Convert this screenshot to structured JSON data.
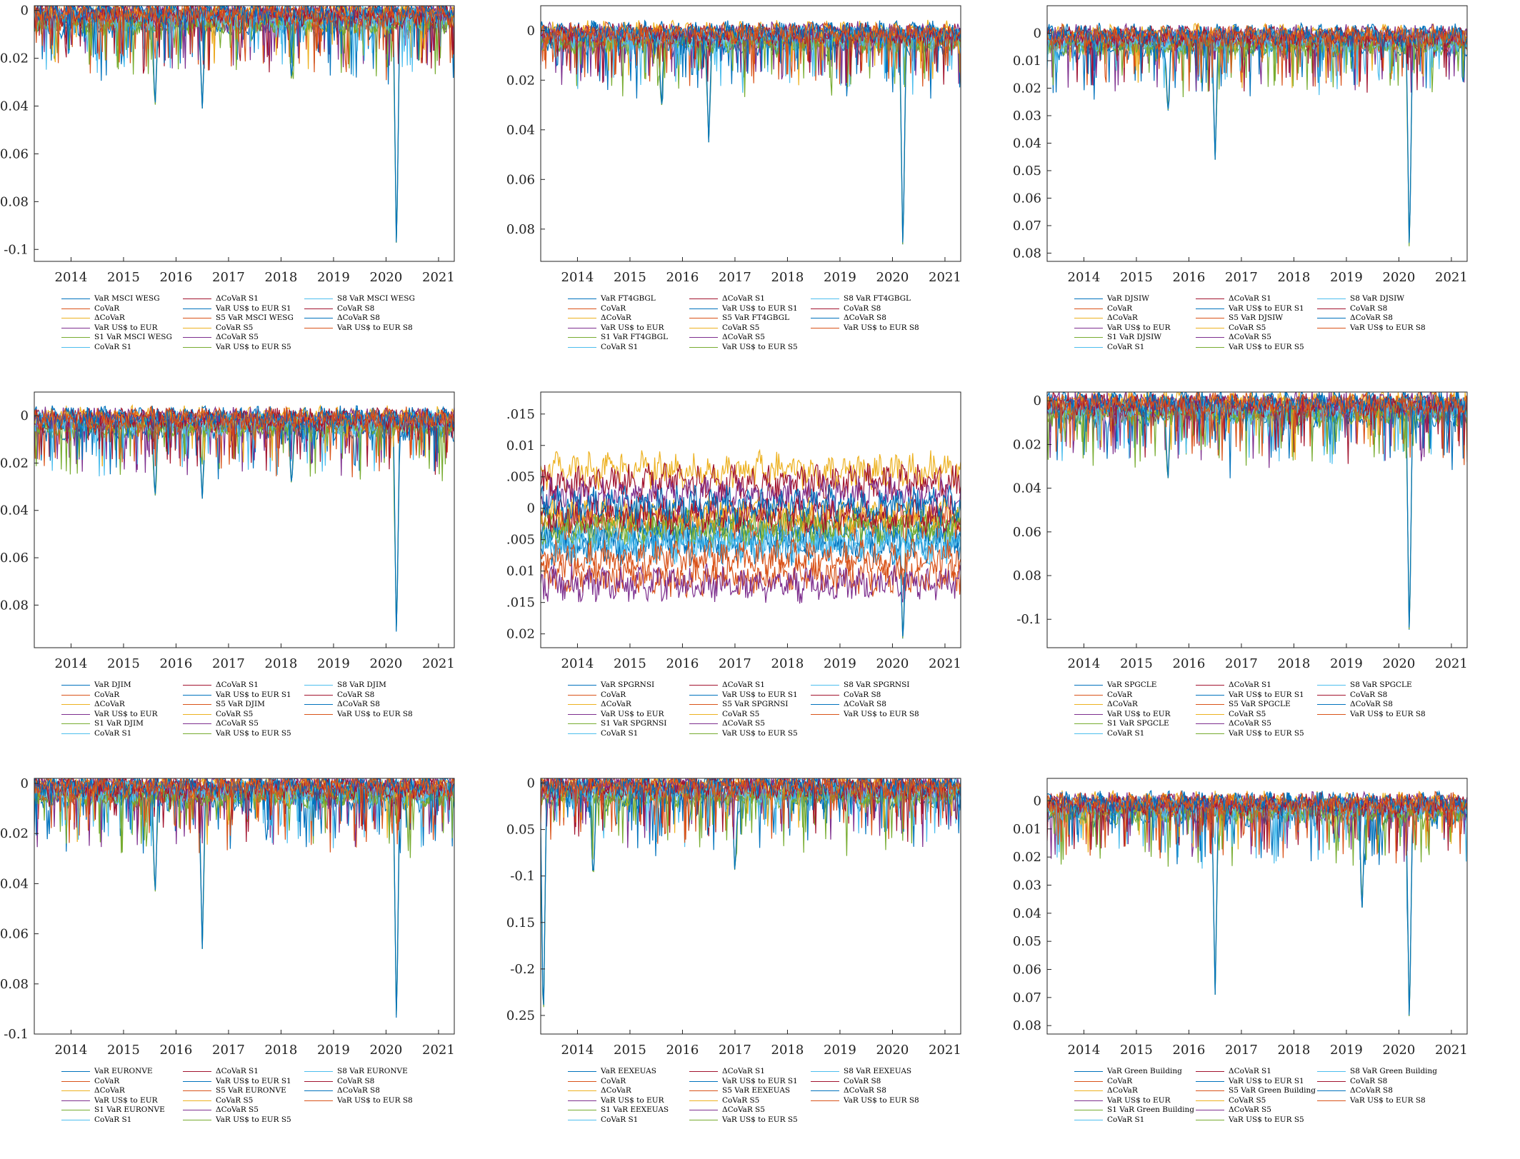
{
  "chart_data": [
    {
      "type": "line",
      "x_ticks": [
        "2014",
        "2015",
        "2016",
        "2017",
        "2018",
        "2019",
        "2020",
        "2021"
      ],
      "y_ticks": [
        "-0.1",
        "-0.08",
        "-0.06",
        "-0.04",
        "-0.02",
        "0"
      ],
      "y_tick_values": [
        -0.1,
        -0.08,
        -0.06,
        -0.04,
        -0.02,
        0
      ],
      "xlim": [
        2013.3,
        2021.3
      ],
      "ylim": [
        -0.105,
        0.002
      ],
      "series_names": [
        "VaR MSCI WESG",
        "CoVaR",
        "ΔCoVaR",
        "VaR US$ to EUR",
        "S1 VaR MSCI WESG",
        "CoVaR S1",
        "ΔCoVaR S1",
        "VaR US$ to EUR S1",
        "S5 VaR MSCI WESG",
        "CoVaR S5",
        "ΔCoVaR S5",
        "VaR US$ to EUR S5",
        "S8 VaR MSCI WESG",
        "CoVaR S8",
        "ΔCoVaR S8",
        "VaR US$ to EUR S8"
      ],
      "spikes": [
        [
          2015.6,
          -0.042
        ],
        [
          2016.5,
          -0.041
        ],
        [
          2018.2,
          -0.03
        ],
        [
          2020.2,
          -0.105
        ]
      ]
    },
    {
      "type": "line",
      "x_ticks": [
        "2014",
        "2015",
        "2016",
        "2017",
        "2018",
        "2019",
        "2020",
        "2021"
      ],
      "y_ticks": [
        "-0.08",
        "-0.06",
        "-0.04",
        "-0.02",
        "0"
      ],
      "y_tick_values": [
        -0.08,
        -0.06,
        -0.04,
        -0.02,
        0
      ],
      "xlim": [
        2013.3,
        2021.3
      ],
      "ylim": [
        -0.093,
        0.01
      ],
      "series_names": [
        "VaR FT4GBGL",
        "CoVaR",
        "ΔCoVaR",
        "VaR US$ to EUR",
        "S1 VaR FT4GBGL",
        "CoVaR S1",
        "ΔCoVaR S1",
        "VaR US$ to EUR S1",
        "S5 VaR FT4GBGL",
        "CoVaR S5",
        "ΔCoVaR S5",
        "VaR US$ to EUR S5",
        "S8 VaR FT4GBGL",
        "CoVaR S8",
        "ΔCoVaR S8",
        "VaR US$ to EUR S8"
      ],
      "spikes": [
        [
          2015.6,
          -0.032
        ],
        [
          2016.5,
          -0.045
        ],
        [
          2020.2,
          -0.093
        ]
      ]
    },
    {
      "type": "line",
      "x_ticks": [
        "2014",
        "2015",
        "2016",
        "2017",
        "2018",
        "2019",
        "2020",
        "2021"
      ],
      "y_ticks": [
        "-0.08",
        "-0.07",
        "-0.06",
        "-0.05",
        "-0.04",
        "-0.03",
        "-0.02",
        "-0.01",
        "0"
      ],
      "y_tick_values": [
        -0.08,
        -0.07,
        -0.06,
        -0.05,
        -0.04,
        -0.03,
        -0.02,
        -0.01,
        0
      ],
      "xlim": [
        2013.3,
        2021.3
      ],
      "ylim": [
        -0.083,
        0.01
      ],
      "series_names": [
        "VaR DJSIW",
        "CoVaR",
        "ΔCoVaR",
        "VaR US$ to EUR",
        "S1 VaR DJSIW",
        "CoVaR S1",
        "ΔCoVaR S1",
        "VaR US$ to EUR S1",
        "S5 VaR DJSIW",
        "CoVaR S5",
        "ΔCoVaR S5",
        "VaR US$ to EUR S5",
        "S8 VaR DJSIW",
        "CoVaR S8",
        "ΔCoVaR S8",
        "VaR US$ to EUR S8"
      ],
      "spikes": [
        [
          2015.6,
          -0.03
        ],
        [
          2016.5,
          -0.046
        ],
        [
          2020.2,
          -0.083
        ]
      ]
    },
    {
      "type": "line",
      "x_ticks": [
        "2014",
        "2015",
        "2016",
        "2017",
        "2018",
        "2019",
        "2020",
        "2021"
      ],
      "y_ticks": [
        "-0.08",
        "-0.06",
        "-0.04",
        "-0.02",
        "0"
      ],
      "y_tick_values": [
        -0.08,
        -0.06,
        -0.04,
        -0.02,
        0
      ],
      "xlim": [
        2013.3,
        2021.3
      ],
      "ylim": [
        -0.098,
        0.01
      ],
      "series_names": [
        "VaR DJIM",
        "CoVaR",
        "ΔCoVaR",
        "VaR US$ to EUR",
        "S1 VaR DJIM",
        "CoVaR S1",
        "ΔCoVaR S1",
        "VaR US$ to EUR S1",
        "S5 VaR DJIM",
        "CoVaR S5",
        "ΔCoVaR S5",
        "VaR US$ to EUR S5",
        "S8 VaR DJIM",
        "CoVaR S8",
        "ΔCoVaR S8",
        "VaR US$ to EUR S8"
      ],
      "spikes": [
        [
          2015.6,
          -0.036
        ],
        [
          2016.5,
          -0.035
        ],
        [
          2018.2,
          -0.03
        ],
        [
          2020.2,
          -0.098
        ]
      ]
    },
    {
      "type": "line",
      "x_ticks": [
        "2014",
        "2015",
        "2016",
        "2017",
        "2018",
        "2019",
        "2020",
        "2021"
      ],
      "y_ticks": [
        "-0.02",
        "-0.015",
        "-0.01",
        "-0.005",
        "0",
        "0.005",
        "0.01",
        "0.015"
      ],
      "y_tick_values": [
        -0.02,
        -0.015,
        -0.01,
        -0.005,
        0,
        0.005,
        0.01,
        0.015
      ],
      "xlim": [
        2013.3,
        2021.3
      ],
      "ylim": [
        -0.0222,
        0.0185
      ],
      "series_names": [
        "VaR SPGRNSI",
        "CoVaR",
        "ΔCoVaR",
        "VaR US$ to EUR",
        "S1 VaR SPGRNSI",
        "CoVaR S1",
        "ΔCoVaR S1",
        "VaR US$ to EUR S1",
        "S5 VaR SPGRNSI",
        "CoVaR S5",
        "ΔCoVaR S5",
        "VaR US$ to EUR S5",
        "S8 VaR SPGRNSI",
        "CoVaR S8",
        "ΔCoVaR S8",
        "VaR US$ to EUR S8"
      ],
      "spikes": [
        [
          2020.2,
          -0.022
        ]
      ]
    },
    {
      "type": "line",
      "x_ticks": [
        "2014",
        "2015",
        "2016",
        "2017",
        "2018",
        "2019",
        "2020",
        "2021"
      ],
      "y_ticks": [
        "-0.1",
        "-0.08",
        "-0.06",
        "-0.04",
        "-0.02",
        "0"
      ],
      "y_tick_values": [
        -0.1,
        -0.08,
        -0.06,
        -0.04,
        -0.02,
        0
      ],
      "xlim": [
        2013.3,
        2021.3
      ],
      "ylim": [
        -0.113,
        0.004
      ],
      "series_names": [
        "VaR SPGCLE",
        "CoVaR",
        "ΔCoVaR",
        "VaR US$ to EUR",
        "S1 VaR SPGCLE",
        "CoVaR S1",
        "ΔCoVaR S1",
        "VaR US$ to EUR S1",
        "S5 VaR SPGCLE",
        "CoVaR S5",
        "ΔCoVaR S5",
        "VaR US$ to EUR S5",
        "S8 VaR SPGCLE",
        "CoVaR S8",
        "ΔCoVaR S8",
        "VaR US$ to EUR S8"
      ],
      "spikes": [
        [
          2015.6,
          -0.038
        ],
        [
          2020.2,
          -0.113
        ]
      ]
    },
    {
      "type": "line",
      "x_ticks": [
        "2014",
        "2015",
        "2016",
        "2017",
        "2018",
        "2019",
        "2020",
        "2021"
      ],
      "y_ticks": [
        "-0.1",
        "-0.08",
        "-0.06",
        "-0.04",
        "-0.02",
        "0"
      ],
      "y_tick_values": [
        -0.1,
        -0.08,
        -0.06,
        -0.04,
        -0.02,
        0
      ],
      "xlim": [
        2013.3,
        2021.3
      ],
      "ylim": [
        -0.1,
        0.002
      ],
      "series_names": [
        "VaR EURONVE",
        "CoVaR",
        "ΔCoVaR",
        "VaR US$ to EUR",
        "S1 VaR EURONVE",
        "CoVaR S1",
        "ΔCoVaR S1",
        "VaR US$ to EUR S1",
        "S5 VaR EURONVE",
        "CoVaR S5",
        "ΔCoVaR S5",
        "VaR US$ to EUR S5",
        "S8 VaR EURONVE",
        "CoVaR S8",
        "ΔCoVaR S8",
        "VaR US$ to EUR S8"
      ],
      "spikes": [
        [
          2015.6,
          -0.046
        ],
        [
          2016.5,
          -0.066
        ],
        [
          2020.2,
          -0.1
        ]
      ]
    },
    {
      "type": "line",
      "x_ticks": [
        "2014",
        "2015",
        "2016",
        "2017",
        "2018",
        "2019",
        "2020",
        "2021"
      ],
      "y_ticks": [
        "-0.25",
        "-0.2",
        "-0.15",
        "-0.1",
        "-0.05",
        "0"
      ],
      "y_tick_values": [
        -0.25,
        -0.2,
        -0.15,
        -0.1,
        -0.05,
        0
      ],
      "xlim": [
        2013.3,
        2021.3
      ],
      "ylim": [
        -0.27,
        0.005
      ],
      "series_names": [
        "VaR EEXEUAS",
        "CoVaR",
        "ΔCoVaR",
        "VaR US$ to EUR",
        "S1 VaR EEXEUAS",
        "CoVaR S1",
        "ΔCoVaR S1",
        "VaR US$ to EUR S1",
        "S5 VaR EEXEUAS",
        "CoVaR S5",
        "ΔCoVaR S5",
        "VaR US$ to EUR S5",
        "S8 VaR EEXEUAS",
        "CoVaR S8",
        "ΔCoVaR S8",
        "VaR US$ to EUR S8"
      ],
      "spikes": [
        [
          2013.35,
          -0.27
        ],
        [
          2014.3,
          -0.11
        ],
        [
          2017.0,
          -0.1
        ]
      ]
    },
    {
      "type": "line",
      "x_ticks": [
        "2014",
        "2015",
        "2016",
        "2017",
        "2018",
        "2019",
        "2020",
        "2021"
      ],
      "y_ticks": [
        "-0.08",
        "-0.07",
        "-0.06",
        "-0.05",
        "-0.04",
        "-0.03",
        "-0.02",
        "-0.01",
        "0"
      ],
      "y_tick_values": [
        -0.08,
        -0.07,
        -0.06,
        -0.05,
        -0.04,
        -0.03,
        -0.02,
        -0.01,
        0
      ],
      "xlim": [
        2013.3,
        2021.3
      ],
      "ylim": [
        -0.083,
        0.008
      ],
      "series_names": [
        "VaR Green Building",
        "CoVaR",
        "ΔCoVaR",
        "VaR US$ to EUR",
        "S1 VaR Green Building",
        "CoVaR S1",
        "ΔCoVaR S1",
        "VaR US$ to EUR S1",
        "S5 VaR Green Building",
        "CoVaR S5",
        "ΔCoVaR S5",
        "VaR US$ to EUR S5",
        "S8 VaR Green Building",
        "CoVaR S8",
        "ΔCoVaR S8",
        "VaR US$ to EUR S8"
      ],
      "spikes": [
        [
          2016.5,
          -0.069
        ],
        [
          2019.3,
          -0.038
        ],
        [
          2020.2,
          -0.083
        ]
      ]
    }
  ],
  "colors": {
    "series": [
      "#0072BD",
      "#D95319",
      "#EDB120",
      "#7E2F8E",
      "#77AC30",
      "#4DBEEE",
      "#A2142F",
      "#0072BD",
      "#D95319",
      "#EDB120",
      "#7E2F8E",
      "#77AC30",
      "#4DBEEE",
      "#A2142F",
      "#0072BD",
      "#D95319"
    ],
    "axis": "#222222"
  }
}
